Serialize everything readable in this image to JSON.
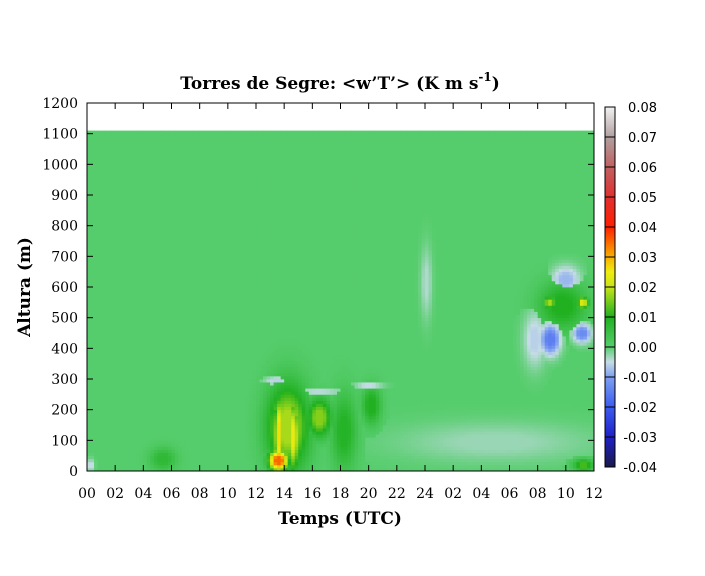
{
  "chart_data": {
    "type": "heatmap",
    "title": "Torres de Segre: <w’T’> (K m s",
    "title_superscript": "-1",
    "title_close": ")",
    "xlabel": "Temps (UTC)",
    "ylabel": "Altura (m)",
    "x_ticks": [
      "00",
      "02",
      "04",
      "06",
      "08",
      "10",
      "12",
      "14",
      "16",
      "18",
      "20",
      "22",
      "24",
      "02",
      "04",
      "06",
      "08",
      "10",
      "12"
    ],
    "xlim": [
      0,
      36
    ],
    "y_ticks": [
      "0",
      "100",
      "200",
      "300",
      "400",
      "500",
      "600",
      "700",
      "800",
      "900",
      "1000",
      "1100",
      "1200"
    ],
    "ylim": [
      0,
      1200
    ],
    "data_top": 1110,
    "colorbar_ticks": [
      "0.08",
      "0.07",
      "0.06",
      "0.05",
      "0.04",
      "0.03",
      "0.02",
      "0.01",
      "0.00",
      "-0.01",
      "-0.02",
      "-0.03",
      "-0.04"
    ],
    "colorbar_range": [
      -0.04,
      0.08
    ],
    "background_value": 0.0,
    "features": [
      {
        "x": [
          12.7,
          15.8
        ],
        "y": [
          0,
          290
        ],
        "value": 0.018
      },
      {
        "x": [
          12.9,
          14.3
        ],
        "y": [
          0,
          70
        ],
        "value": 0.035
      },
      {
        "x": [
          13.3,
          13.9
        ],
        "y": [
          0,
          240
        ],
        "value": 0.026
      },
      {
        "x": [
          14.4,
          15.0
        ],
        "y": [
          0,
          230
        ],
        "value": 0.024
      },
      {
        "x": [
          15.6,
          17.4
        ],
        "y": [
          110,
          240
        ],
        "value": 0.016
      },
      {
        "x": [
          17.3,
          19.2
        ],
        "y": [
          0,
          260
        ],
        "value": 0.009
      },
      {
        "x": [
          19.5,
          20.9
        ],
        "y": [
          150,
          280
        ],
        "value": 0.01
      },
      {
        "x": [
          12.6,
          14.5
        ],
        "y": [
          280,
          310
        ],
        "value": -0.006
      },
      {
        "x": [
          14.5,
          18.4
        ],
        "y": [
          250,
          270
        ],
        "value": -0.005
      },
      {
        "x": [
          19.0,
          21.0
        ],
        "y": [
          270,
          290
        ],
        "value": -0.006
      },
      {
        "x": [
          23.7,
          24.5
        ],
        "y": [
          500,
          730
        ],
        "value": -0.004
      },
      {
        "x": [
          4.4,
          6.4
        ],
        "y": [
          0,
          80
        ],
        "value": 0.007
      },
      {
        "x": [
          0.0,
          0.5
        ],
        "y": [
          0,
          40
        ],
        "value": -0.006
      },
      {
        "x": [
          33.0,
          35.0
        ],
        "y": [
          580,
          670
        ],
        "value": -0.008
      },
      {
        "x": [
          32.0,
          35.5
        ],
        "y": [
          460,
          620
        ],
        "value": 0.01
      },
      {
        "x": [
          32.4,
          33.3
        ],
        "y": [
          530,
          570
        ],
        "value": 0.018
      },
      {
        "x": [
          34.8,
          35.6
        ],
        "y": [
          530,
          570
        ],
        "value": 0.022
      },
      {
        "x": [
          31.0,
          32.6
        ],
        "y": [
          340,
          520
        ],
        "value": -0.006
      },
      {
        "x": [
          32.2,
          33.6
        ],
        "y": [
          380,
          480
        ],
        "value": -0.015
      },
      {
        "x": [
          34.5,
          35.8
        ],
        "y": [
          420,
          480
        ],
        "value": -0.013
      },
      {
        "x": [
          22.0,
          36.0
        ],
        "y": [
          30,
          160
        ],
        "value": -0.003
      },
      {
        "x": [
          34.5,
          36.0
        ],
        "y": [
          0,
          40
        ],
        "value": 0.012
      }
    ],
    "grid": false,
    "colormap": [
      {
        "v": -0.04,
        "c": "#1a1a4a"
      },
      {
        "v": -0.03,
        "c": "#2020c8"
      },
      {
        "v": -0.02,
        "c": "#3c5cf0"
      },
      {
        "v": -0.01,
        "c": "#7ea0f0"
      },
      {
        "v": -0.005,
        "c": "#c6dce6"
      },
      {
        "v": 0.0,
        "c": "#56cd6c"
      },
      {
        "v": 0.01,
        "c": "#20b020"
      },
      {
        "v": 0.02,
        "c": "#c8e418"
      },
      {
        "v": 0.025,
        "c": "#f0ec10"
      },
      {
        "v": 0.03,
        "c": "#f8b000"
      },
      {
        "v": 0.04,
        "c": "#ff2000"
      },
      {
        "v": 0.05,
        "c": "#e03030"
      },
      {
        "v": 0.06,
        "c": "#c06060"
      },
      {
        "v": 0.07,
        "c": "#b0a0a0"
      },
      {
        "v": 0.08,
        "c": "#f2f2f2"
      }
    ]
  }
}
